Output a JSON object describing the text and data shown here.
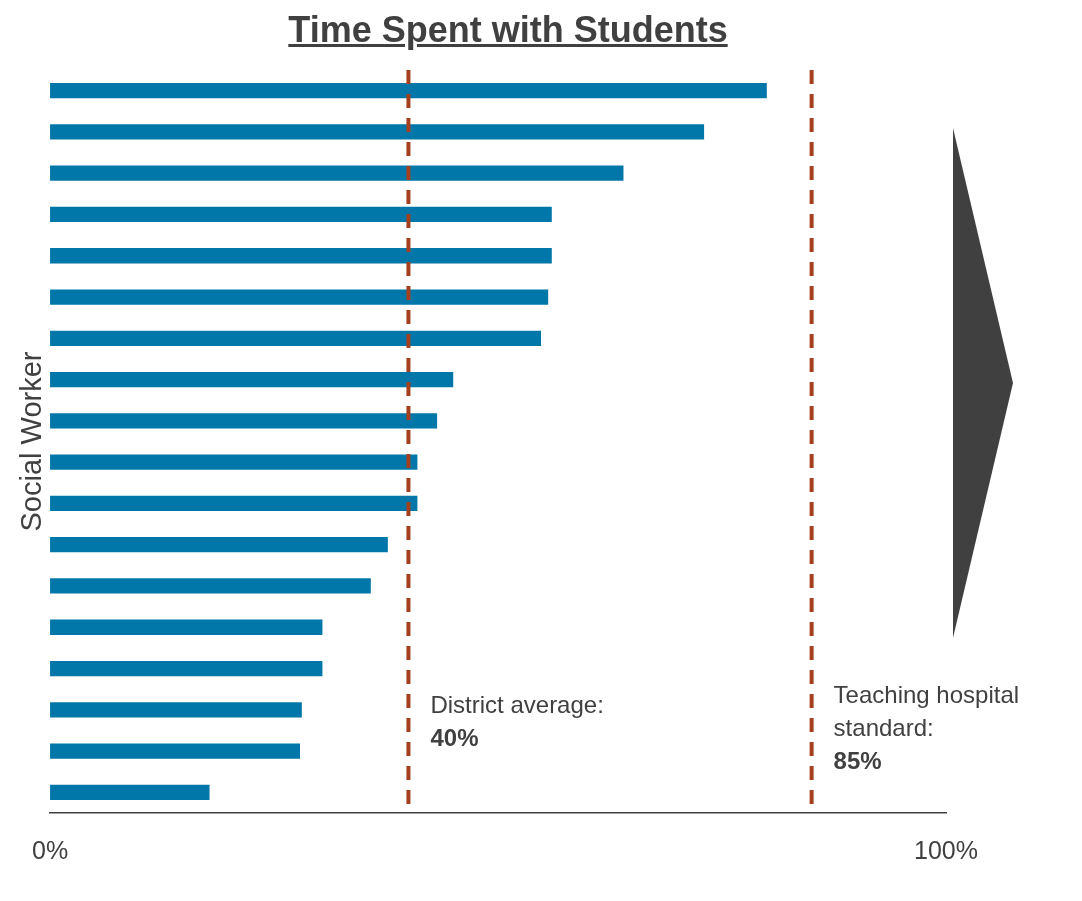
{
  "chart_data": {
    "type": "bar",
    "orientation": "horizontal",
    "title": "Time Spent with Students",
    "ylabel": "Social Worker",
    "categories": [
      null,
      null,
      null,
      null,
      null,
      null,
      null,
      null,
      null,
      null,
      null,
      null,
      null,
      null,
      null,
      null,
      null,
      null
    ],
    "values": [
      80,
      73,
      64,
      56,
      56,
      55.6,
      54.8,
      45,
      43.2,
      41,
      41,
      37.7,
      35.8,
      30.4,
      30.4,
      28.1,
      27.9,
      17.8
    ],
    "color": "#0077a8",
    "xlim": [
      0,
      100
    ],
    "xticks": [
      {
        "value": 0,
        "label": "0%"
      },
      {
        "value": 100,
        "label": "100%"
      }
    ],
    "tick_labels": "x",
    "ref_lines": [
      {
        "axis": "x",
        "value": 40,
        "label": "District average:\n40%",
        "color": "#a5401e",
        "line_style": "dashed"
      },
      {
        "axis": "x",
        "value": 85,
        "label": "Teaching hospital\nstandard:\n85%",
        "color": "#a5401e",
        "line_style": "dashed"
      }
    ]
  }
}
